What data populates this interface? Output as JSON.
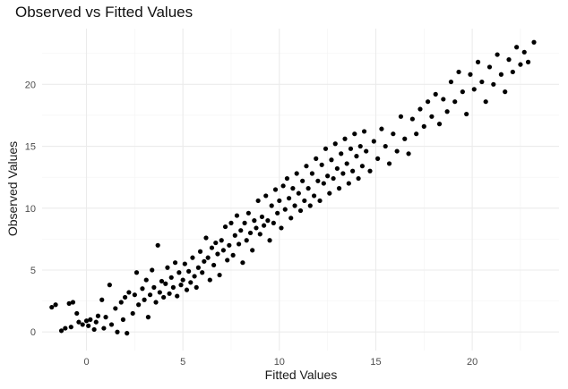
{
  "chart_data": {
    "type": "scatter",
    "title": "Observed vs Fitted Values",
    "xlabel": "Fitted Values",
    "ylabel": "Observed Values",
    "xlim": [
      -2.3,
      24.5
    ],
    "ylim": [
      -1.5,
      24.5
    ],
    "x_ticks": [
      0,
      5,
      10,
      15,
      20
    ],
    "y_ticks": [
      0,
      5,
      10,
      15,
      20
    ],
    "grid": true,
    "point_color": "#000000",
    "n_points": 1000,
    "description": "Dense cloud of ~1000 points lying along the 45-degree line from about (-2, 0) to (23, 23); sample points below",
    "points": [
      [
        -1.8,
        2.0
      ],
      [
        -1.6,
        2.2
      ],
      [
        -1.3,
        0.1
      ],
      [
        -1.1,
        0.3
      ],
      [
        -0.9,
        2.3
      ],
      [
        -0.8,
        0.4
      ],
      [
        -0.7,
        2.4
      ],
      [
        -0.5,
        1.5
      ],
      [
        -0.4,
        0.8
      ],
      [
        -0.2,
        0.6
      ],
      [
        0.0,
        0.9
      ],
      [
        0.1,
        0.5
      ],
      [
        0.2,
        1.0
      ],
      [
        0.4,
        0.2
      ],
      [
        0.5,
        0.8
      ],
      [
        0.6,
        1.3
      ],
      [
        0.8,
        2.6
      ],
      [
        0.9,
        0.3
      ],
      [
        1.0,
        1.2
      ],
      [
        1.2,
        3.8
      ],
      [
        1.3,
        0.6
      ],
      [
        1.5,
        1.9
      ],
      [
        1.6,
        0.0
      ],
      [
        1.8,
        2.4
      ],
      [
        1.9,
        1.0
      ],
      [
        2.0,
        2.8
      ],
      [
        2.1,
        -0.1
      ],
      [
        2.2,
        3.2
      ],
      [
        2.4,
        1.5
      ],
      [
        2.5,
        3.0
      ],
      [
        2.6,
        4.8
      ],
      [
        2.7,
        2.2
      ],
      [
        2.9,
        3.5
      ],
      [
        3.0,
        2.6
      ],
      [
        3.1,
        4.2
      ],
      [
        3.2,
        1.2
      ],
      [
        3.3,
        3.0
      ],
      [
        3.4,
        5.0
      ],
      [
        3.5,
        3.6
      ],
      [
        3.6,
        2.4
      ],
      [
        3.7,
        7.0
      ],
      [
        3.8,
        3.2
      ],
      [
        3.9,
        4.1
      ],
      [
        4.0,
        2.8
      ],
      [
        4.1,
        3.9
      ],
      [
        4.2,
        5.2
      ],
      [
        4.3,
        3.1
      ],
      [
        4.4,
        4.4
      ],
      [
        4.5,
        3.6
      ],
      [
        4.6,
        5.6
      ],
      [
        4.7,
        2.9
      ],
      [
        4.8,
        4.8
      ],
      [
        4.9,
        3.8
      ],
      [
        5.0,
        4.2
      ],
      [
        5.1,
        5.5
      ],
      [
        5.2,
        3.4
      ],
      [
        5.3,
        4.9
      ],
      [
        5.4,
        4.0
      ],
      [
        5.5,
        6.0
      ],
      [
        5.6,
        4.5
      ],
      [
        5.7,
        3.6
      ],
      [
        5.8,
        5.2
      ],
      [
        5.9,
        6.5
      ],
      [
        6.0,
        4.8
      ],
      [
        6.1,
        5.7
      ],
      [
        6.2,
        7.6
      ],
      [
        6.3,
        6.0
      ],
      [
        6.4,
        4.2
      ],
      [
        6.5,
        6.8
      ],
      [
        6.6,
        5.4
      ],
      [
        6.7,
        7.2
      ],
      [
        6.8,
        6.3
      ],
      [
        6.9,
        4.6
      ],
      [
        7.0,
        7.4
      ],
      [
        7.1,
        6.6
      ],
      [
        7.2,
        8.5
      ],
      [
        7.3,
        5.8
      ],
      [
        7.4,
        7.0
      ],
      [
        7.5,
        8.8
      ],
      [
        7.6,
        6.2
      ],
      [
        7.7,
        7.8
      ],
      [
        7.8,
        9.4
      ],
      [
        7.9,
        7.1
      ],
      [
        8.0,
        8.2
      ],
      [
        8.1,
        5.6
      ],
      [
        8.2,
        8.8
      ],
      [
        8.3,
        7.4
      ],
      [
        8.4,
        9.6
      ],
      [
        8.5,
        8.0
      ],
      [
        8.6,
        6.6
      ],
      [
        8.7,
        9.0
      ],
      [
        8.8,
        8.4
      ],
      [
        8.9,
        10.6
      ],
      [
        9.0,
        7.9
      ],
      [
        9.1,
        9.3
      ],
      [
        9.2,
        8.6
      ],
      [
        9.3,
        11.0
      ],
      [
        9.4,
        9.0
      ],
      [
        9.5,
        7.4
      ],
      [
        9.6,
        10.2
      ],
      [
        9.7,
        8.8
      ],
      [
        9.8,
        11.5
      ],
      [
        9.9,
        9.6
      ],
      [
        10.0,
        10.6
      ],
      [
        10.1,
        8.4
      ],
      [
        10.2,
        11.8
      ],
      [
        10.3,
        9.9
      ],
      [
        10.4,
        12.4
      ],
      [
        10.5,
        10.8
      ],
      [
        10.6,
        9.2
      ],
      [
        10.7,
        11.6
      ],
      [
        10.8,
        10.2
      ],
      [
        10.9,
        12.8
      ],
      [
        11.0,
        11.2
      ],
      [
        11.1,
        9.8
      ],
      [
        11.2,
        12.2
      ],
      [
        11.3,
        10.6
      ],
      [
        11.4,
        13.4
      ],
      [
        11.5,
        11.6
      ],
      [
        11.6,
        10.2
      ],
      [
        11.7,
        12.8
      ],
      [
        11.8,
        11.0
      ],
      [
        11.9,
        14.0
      ],
      [
        12.0,
        12.2
      ],
      [
        12.1,
        10.6
      ],
      [
        12.2,
        13.5
      ],
      [
        12.3,
        12.0
      ],
      [
        12.4,
        14.8
      ],
      [
        12.5,
        12.6
      ],
      [
        12.6,
        11.2
      ],
      [
        12.7,
        13.9
      ],
      [
        12.8,
        12.4
      ],
      [
        12.9,
        15.2
      ],
      [
        13.0,
        13.2
      ],
      [
        13.1,
        11.6
      ],
      [
        13.2,
        14.4
      ],
      [
        13.3,
        12.8
      ],
      [
        13.4,
        15.6
      ],
      [
        13.5,
        13.6
      ],
      [
        13.6,
        12.0
      ],
      [
        13.7,
        14.8
      ],
      [
        13.8,
        13.0
      ],
      [
        13.9,
        16.0
      ],
      [
        14.0,
        14.2
      ],
      [
        14.1,
        12.4
      ],
      [
        14.2,
        15.0
      ],
      [
        14.3,
        13.4
      ],
      [
        14.4,
        16.2
      ],
      [
        14.5,
        14.6
      ],
      [
        14.7,
        13.0
      ],
      [
        14.9,
        15.4
      ],
      [
        15.1,
        14.0
      ],
      [
        15.3,
        16.4
      ],
      [
        15.5,
        15.0
      ],
      [
        15.7,
        13.6
      ],
      [
        15.9,
        16.0
      ],
      [
        16.1,
        14.6
      ],
      [
        16.3,
        17.4
      ],
      [
        16.5,
        15.6
      ],
      [
        16.7,
        14.4
      ],
      [
        16.9,
        17.2
      ],
      [
        17.1,
        16.0
      ],
      [
        17.3,
        18.0
      ],
      [
        17.5,
        16.6
      ],
      [
        17.7,
        18.6
      ],
      [
        17.9,
        17.4
      ],
      [
        18.1,
        19.2
      ],
      [
        18.3,
        16.8
      ],
      [
        18.5,
        18.8
      ],
      [
        18.7,
        17.8
      ],
      [
        18.9,
        20.2
      ],
      [
        19.1,
        18.6
      ],
      [
        19.3,
        21.0
      ],
      [
        19.5,
        19.4
      ],
      [
        19.7,
        17.6
      ],
      [
        19.9,
        20.8
      ],
      [
        20.1,
        19.6
      ],
      [
        20.3,
        21.8
      ],
      [
        20.5,
        20.2
      ],
      [
        20.7,
        18.6
      ],
      [
        20.9,
        21.4
      ],
      [
        21.1,
        20.0
      ],
      [
        21.3,
        22.4
      ],
      [
        21.5,
        20.8
      ],
      [
        21.7,
        19.4
      ],
      [
        21.9,
        22.0
      ],
      [
        22.1,
        21.0
      ],
      [
        22.3,
        23.0
      ],
      [
        22.5,
        21.6
      ],
      [
        22.7,
        22.6
      ],
      [
        22.9,
        21.8
      ],
      [
        23.2,
        23.4
      ]
    ]
  }
}
